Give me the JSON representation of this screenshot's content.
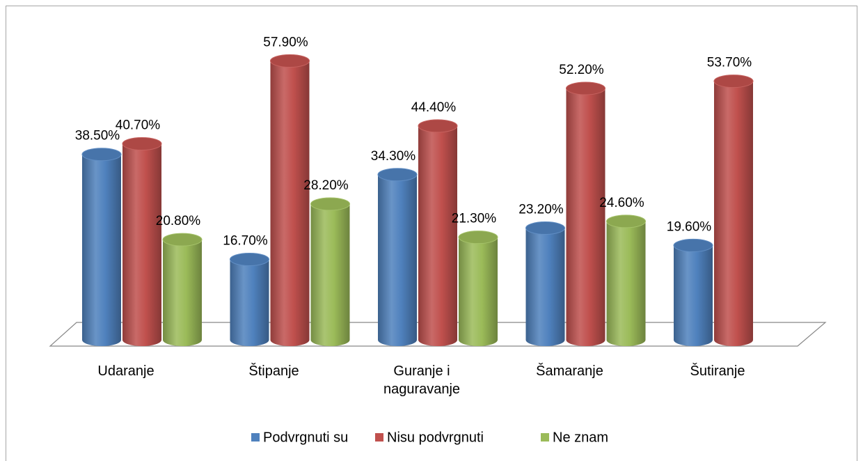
{
  "chart_data": {
    "type": "cylinder",
    "categories": [
      "Udaranje",
      "Štipanje",
      "Guranje i naguravanje",
      "Šamaranje",
      "Šutiranje"
    ],
    "series": [
      {
        "name": "Podvrgnuti su",
        "color": "#4f81bd",
        "values": [
          38.5,
          16.7,
          34.3,
          23.2,
          19.6
        ],
        "value_labels": [
          "38.50%",
          "16.70%",
          "34.30%",
          "23.20%",
          "19.60%"
        ]
      },
      {
        "name": "Nisu podvrgnuti",
        "color": "#c0504d",
        "values": [
          40.7,
          57.9,
          44.4,
          52.2,
          53.7
        ],
        "value_labels": [
          "40.70%",
          "57.90%",
          "44.40%",
          "52.20%",
          "53.70%"
        ]
      },
      {
        "name": "Ne znam",
        "color": "#9bbb59",
        "values": [
          20.8,
          28.2,
          21.3,
          24.6,
          null
        ],
        "value_labels": [
          "20.80%",
          "28.20%",
          "21.30%",
          "24.60%",
          null
        ]
      }
    ],
    "ylim": [
      0,
      60
    ],
    "legend": "bottom"
  }
}
